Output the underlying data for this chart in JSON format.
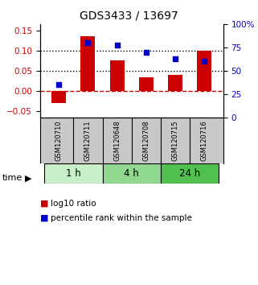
{
  "title": "GDS3433 / 13697",
  "samples": [
    "GSM120710",
    "GSM120711",
    "GSM120648",
    "GSM120708",
    "GSM120715",
    "GSM120716"
  ],
  "log10_ratio": [
    -0.03,
    0.135,
    0.075,
    0.035,
    0.04,
    0.1
  ],
  "percentile_rank": [
    35,
    80,
    78,
    70,
    63,
    60
  ],
  "bar_color": "#cc0000",
  "dot_color": "#0000cc",
  "left_ylim": [
    -0.065,
    0.165
  ],
  "right_ylim": [
    0,
    100
  ],
  "left_yticks": [
    -0.05,
    0.0,
    0.05,
    0.1,
    0.15
  ],
  "right_yticks": [
    0,
    25,
    50,
    75,
    100
  ],
  "right_yticklabels": [
    "0",
    "25",
    "50",
    "75",
    "100%"
  ],
  "hlines_dotted": [
    0.05,
    0.1
  ],
  "hline_zero_color": "#cc0000",
  "time_groups": [
    {
      "label": "1 h",
      "indices": [
        0,
        1
      ],
      "color": "#c8f0c8"
    },
    {
      "label": "4 h",
      "indices": [
        2,
        3
      ],
      "color": "#90d890"
    },
    {
      "label": "24 h",
      "indices": [
        4,
        5
      ],
      "color": "#50c050"
    }
  ],
  "legend_bar_label": "log10 ratio",
  "legend_dot_label": "percentile rank within the sample",
  "time_label": "time",
  "background_color": "#ffffff",
  "plot_bg_color": "#ffffff",
  "label_area_color": "#c8c8c8",
  "bar_width": 0.5
}
